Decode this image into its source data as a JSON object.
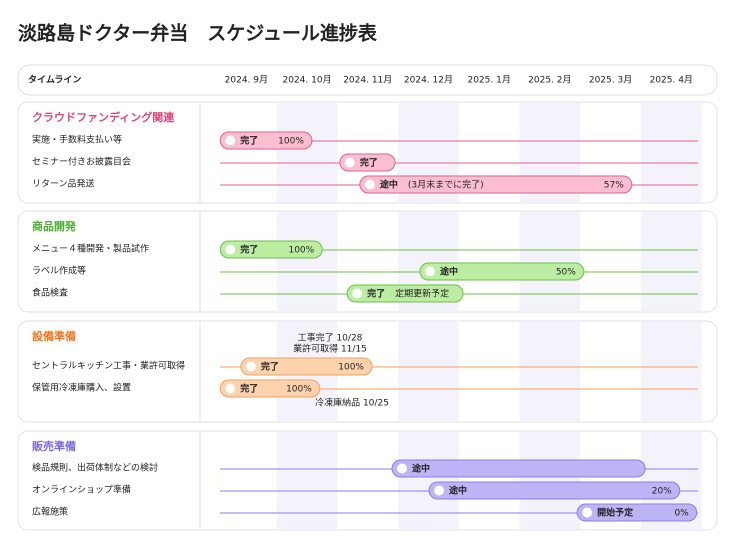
{
  "chart_data": {
    "type": "gantt",
    "title": "淡路島ドクター弁当　スケジュール進捗表",
    "timeline_label": "タイムライン",
    "xlim": [
      0,
      8
    ],
    "xticks": [
      {
        "value": 0.5,
        "label": "2024. 9月"
      },
      {
        "value": 1.5,
        "label": "2024. 10月"
      },
      {
        "value": 2.5,
        "label": "2024. 11月"
      },
      {
        "value": 3.5,
        "label": "2024. 12月"
      },
      {
        "value": 4.5,
        "label": "2025. 1月"
      },
      {
        "value": 5.5,
        "label": "2025. 2月"
      },
      {
        "value": 6.5,
        "label": "2025. 3月"
      },
      {
        "value": 7.5,
        "label": "2025. 4月"
      }
    ],
    "groups": [
      {
        "name": "クラウドファンディング関連",
        "color": "#e0457b",
        "bar_color": "#fbbdd0",
        "border_color": "#e0628e",
        "tasks": [
          {
            "name": "実施・手数料支払い等",
            "start": 0.07,
            "end": 1.58,
            "status": "完了",
            "progress": 100,
            "progress_label": "100%"
          },
          {
            "name": "セミナー付きお披露目会",
            "start": 2.04,
            "end": 2.95,
            "status": "完了"
          },
          {
            "name": "リターン品発送",
            "start": 2.37,
            "end": 6.85,
            "status": "途中",
            "note": "(3月末までに完了)",
            "progress": 57,
            "progress_label": "57%"
          }
        ]
      },
      {
        "name": "商品開発",
        "color": "#4caf32",
        "bar_color": "#bdeda3",
        "border_color": "#6cc04a",
        "tasks": [
          {
            "name": "メニュー４種開発・製品試作",
            "start": 0.07,
            "end": 1.75,
            "status": "完了",
            "progress": 100,
            "progress_label": "100%"
          },
          {
            "name": "ラベル作成等",
            "start": 3.36,
            "end": 6.06,
            "status": "途中",
            "progress": 50,
            "progress_label": "50%"
          },
          {
            "name": "食品検査",
            "start": 2.16,
            "end": 4.07,
            "status": "完了",
            "note": "定期更新予定"
          }
        ]
      },
      {
        "name": "設備準備",
        "color": "#f07820",
        "bar_color": "#fdd3ae",
        "border_color": "#f0a060",
        "tasks": [
          {
            "name": "セントラルキッチン工事・業許可取得",
            "start": 0.41,
            "end": 2.57,
            "status": "完了",
            "progress": 100,
            "progress_label": "100%",
            "annotations_above": [
              "工事完了 10/28",
              "業許可取得 11/15"
            ]
          },
          {
            "name": "保管用冷凍庫購入、設置",
            "start": 0.07,
            "end": 1.71,
            "status": "完了",
            "progress": 100,
            "progress_label": "100%",
            "annotation_below": "冷凍庫納品 10/25"
          }
        ]
      },
      {
        "name": "販売準備",
        "color": "#7b6ae0",
        "bar_color": "#bdb4f6",
        "border_color": "#8b7ce8",
        "tasks": [
          {
            "name": "検品規則、出荷体制などの検討",
            "start": 2.9,
            "end": 7.07,
            "status": "途中"
          },
          {
            "name": "オンラインショップ準備",
            "start": 3.51,
            "end": 7.64,
            "status": "途中",
            "progress": 20,
            "progress_label": "20%"
          },
          {
            "name": "広報施策",
            "start": 5.95,
            "end": 7.92,
            "status": "開始予定",
            "progress": 0,
            "progress_label": "0%"
          }
        ]
      }
    ]
  }
}
